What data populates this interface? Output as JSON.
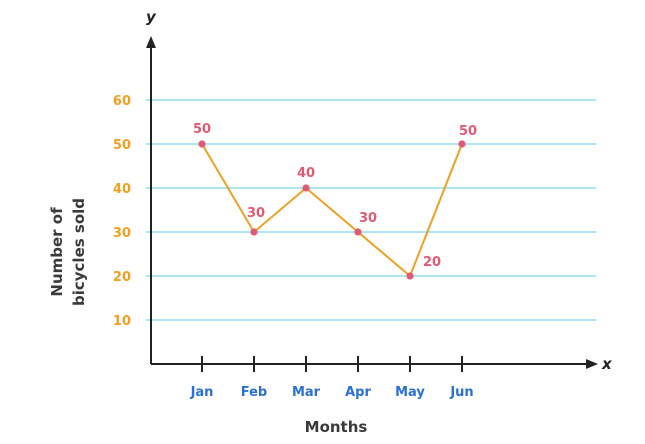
{
  "chart_data": {
    "type": "line",
    "categories": [
      "Jan",
      "Feb",
      "Mar",
      "Apr",
      "May",
      "Jun"
    ],
    "values": [
      50,
      30,
      40,
      30,
      20,
      50
    ],
    "data_labels": [
      "50",
      "30",
      "40",
      "30",
      "20",
      "50"
    ],
    "y_ticks": [
      "10",
      "20",
      "30",
      "40",
      "50",
      "60"
    ],
    "y_tick_values": [
      10,
      20,
      30,
      40,
      50,
      60
    ],
    "ylim": [
      0,
      70
    ],
    "xlabel": "Months",
    "ylabel_line1": "Number of",
    "ylabel_line2": "bicycles sold",
    "x_axis_letter": "x",
    "y_axis_letter": "y",
    "grid": true,
    "colors": {
      "line": "#f0a020",
      "point": "#e05a74",
      "grid": "#7fd3ea",
      "y_ticks": "#f0a020",
      "x_ticks": "#2a6fd6",
      "data_labels": "#e05a74",
      "axis": "#222222"
    }
  }
}
